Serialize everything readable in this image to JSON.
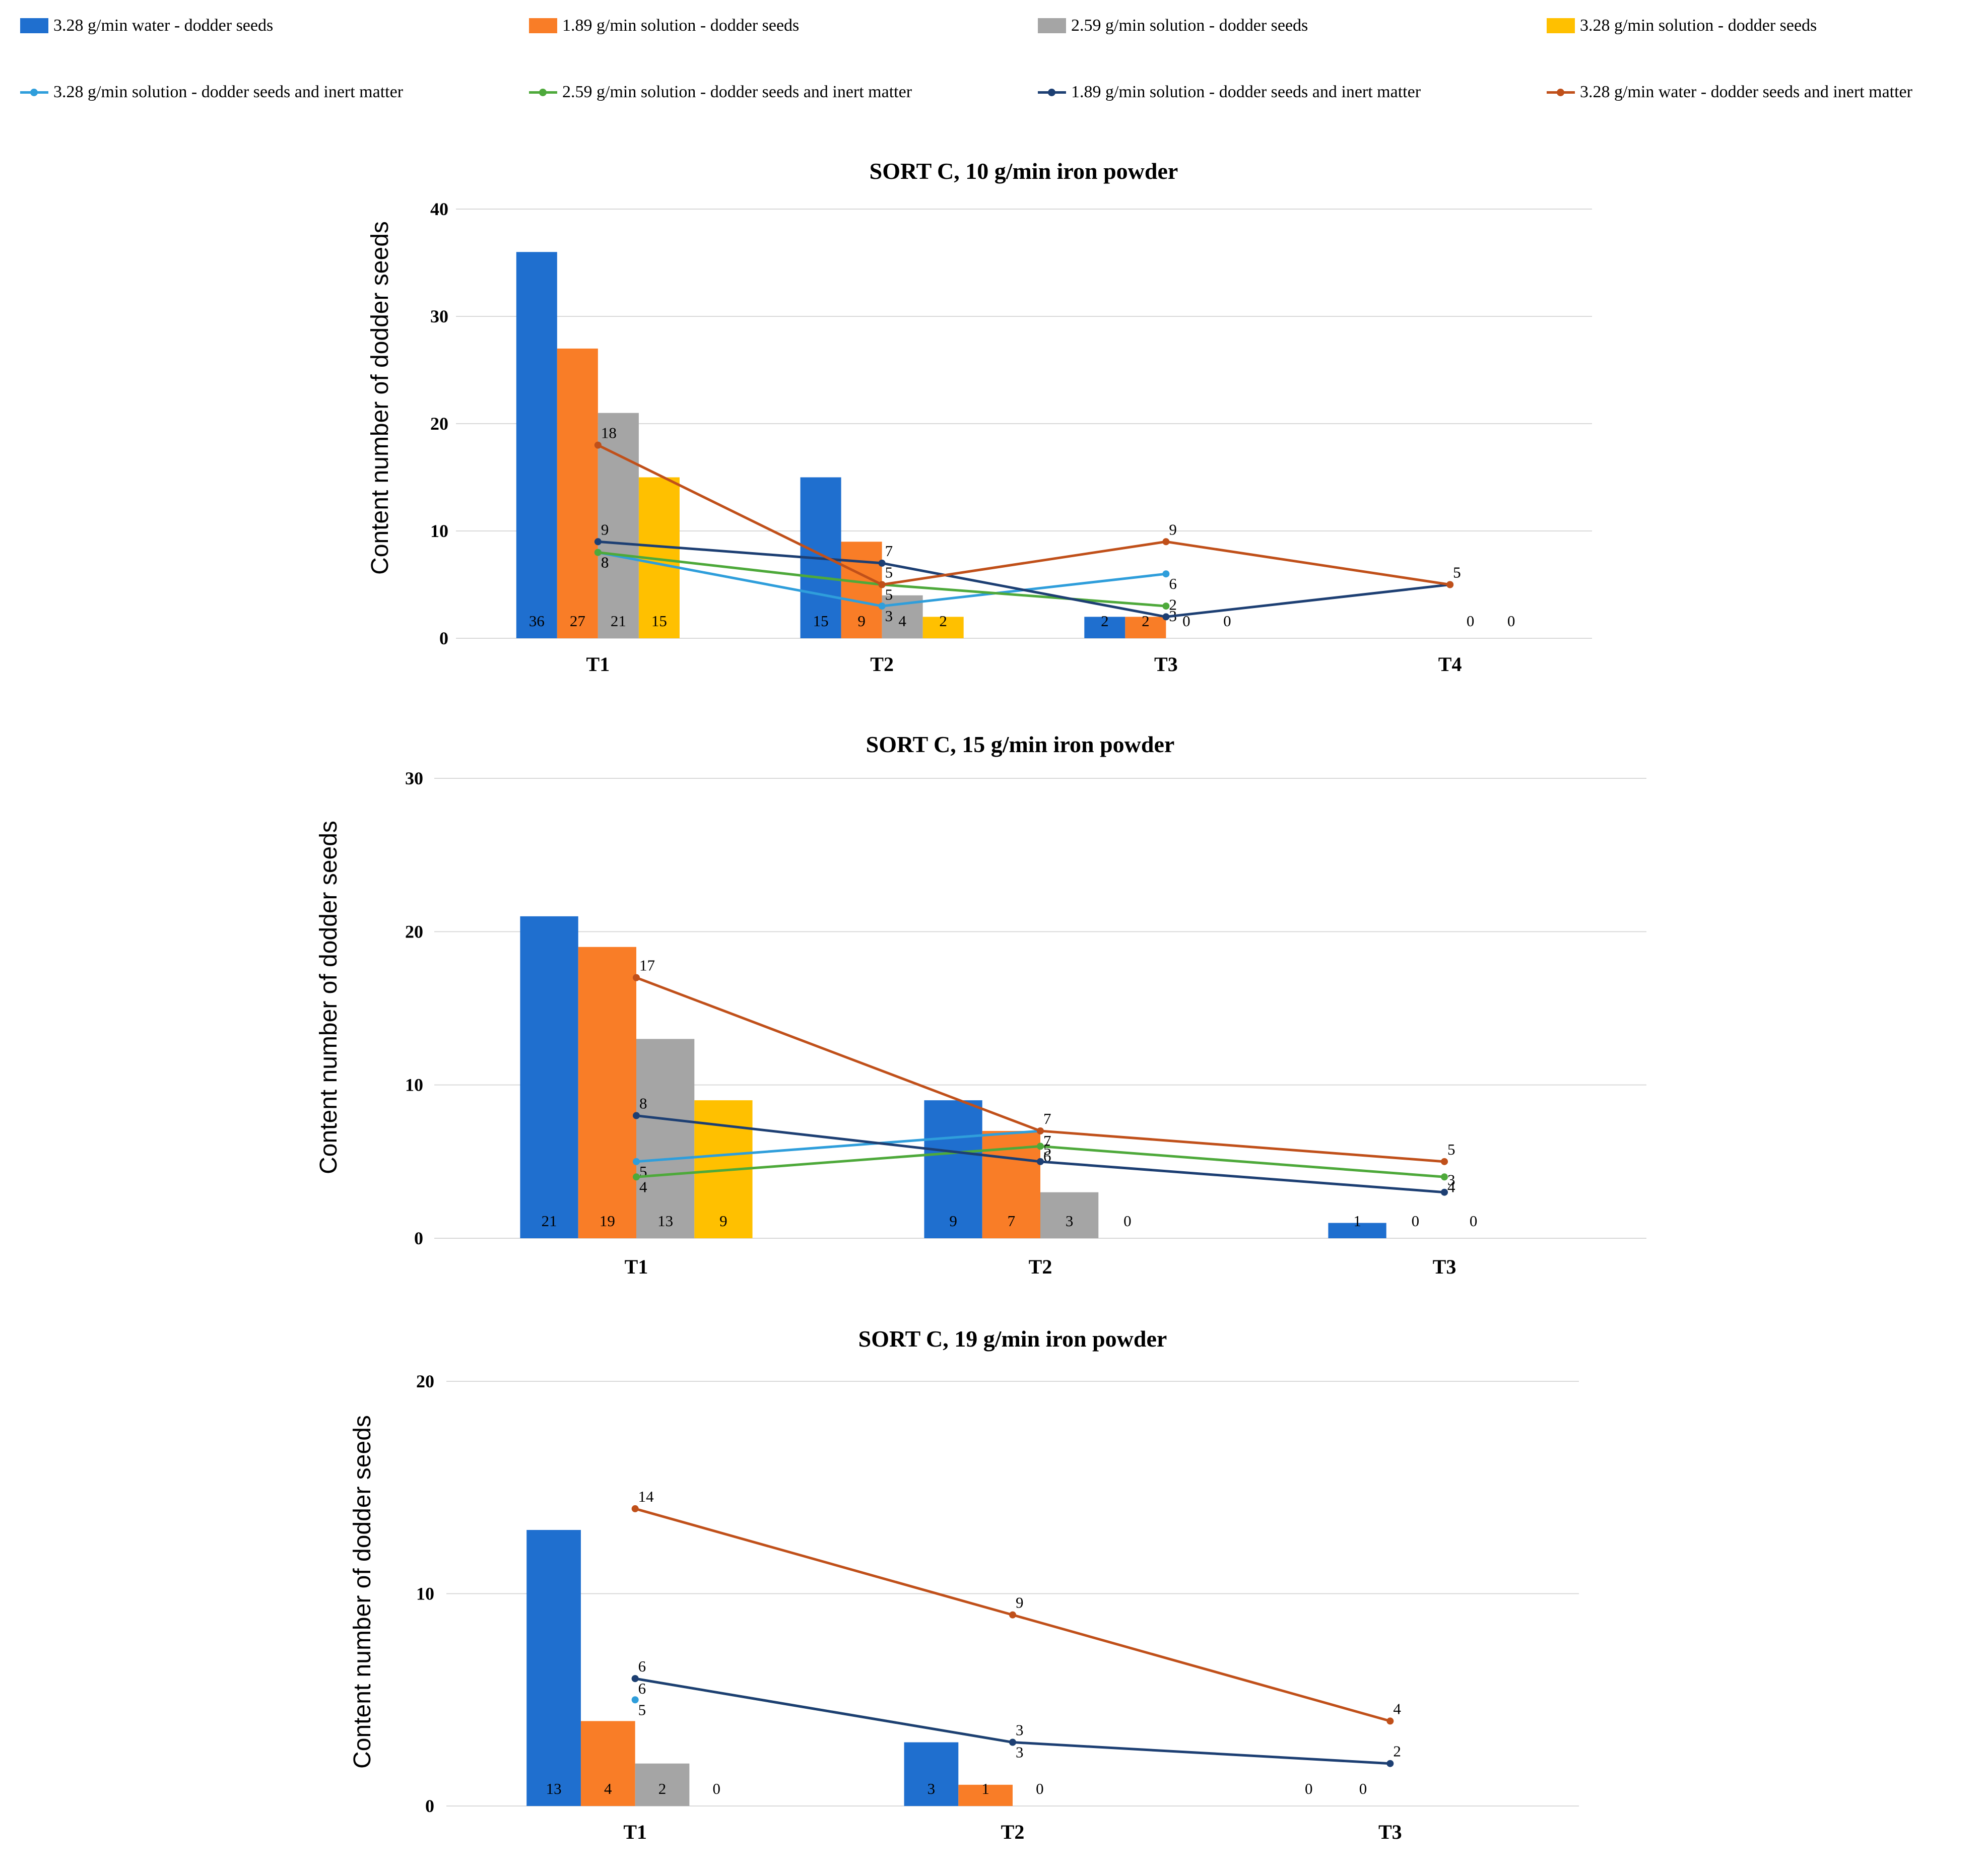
{
  "legend": {
    "bars": [
      {
        "label": "3.28 g/min water - dodder seeds",
        "color": "#1f6fcf"
      },
      {
        "label": "1.89 g/min solution - dodder seeds",
        "color": "#f97d27"
      },
      {
        "label": "2.59 g/min solution - dodder seeds",
        "color": "#a5a5a5"
      },
      {
        "label": "3.28 g/min solution - dodder seeds",
        "color": "#ffc000"
      }
    ],
    "lines": [
      {
        "label": "3.28 g/min solution - dodder seeds and inert matter",
        "color": "#2f9edb"
      },
      {
        "label": "2.59 g/min solution - dodder seeds and inert matter",
        "color": "#4ea93b"
      },
      {
        "label": "1.89 g/min solution - dodder seeds and inert matter",
        "color": "#1d3f73"
      },
      {
        "label": "3.28 g/min water - dodder seeds and inert matter",
        "color": "#c0501a"
      }
    ]
  },
  "chart_data": [
    {
      "type": "bar",
      "title": "SORT C,  10 g/min iron powder",
      "xlabel": "",
      "ylabel": "Content number of dodder seeds",
      "ylim": [
        0,
        40
      ],
      "yticks": [
        0,
        10,
        20,
        30,
        40
      ],
      "categories": [
        "T1",
        "T2",
        "T3",
        "T4"
      ],
      "bar_series": [
        {
          "name": "3.28 g/min water - dodder seeds",
          "values": [
            36,
            15,
            2,
            null
          ],
          "labels": [
            "36",
            "15",
            "2",
            ""
          ]
        },
        {
          "name": "1.89 g/min solution - dodder seeds",
          "values": [
            27,
            9,
            2,
            null
          ],
          "labels": [
            "27",
            "9",
            "2",
            ""
          ]
        },
        {
          "name": "2.59 g/min solution - dodder seeds",
          "values": [
            21,
            4,
            0,
            0
          ],
          "labels": [
            "21",
            "4",
            "0",
            "0"
          ]
        },
        {
          "name": "3.28 g/min solution - dodder seeds",
          "values": [
            15,
            2,
            0,
            0
          ],
          "labels": [
            "15",
            "2",
            "0",
            "0"
          ]
        }
      ],
      "line_series": [
        {
          "name": "3.28 g/min solution - dodder seeds and inert matter",
          "values": [
            8,
            3,
            6,
            null
          ],
          "labels": [
            "8",
            "3",
            "6",
            ""
          ]
        },
        {
          "name": "2.59 g/min solution - dodder seeds and inert matter",
          "values": [
            8,
            5,
            3,
            null
          ],
          "labels": [
            "8",
            "5",
            "3",
            ""
          ]
        },
        {
          "name": "1.89 g/min solution - dodder seeds and inert matter",
          "values": [
            9,
            7,
            2,
            5
          ],
          "labels": [
            "9",
            "7",
            "2",
            "5"
          ]
        },
        {
          "name": "3.28 g/min water - dodder seeds and inert matter",
          "values": [
            18,
            5,
            9,
            5
          ],
          "labels": [
            "18",
            "5",
            "9",
            "5"
          ]
        }
      ]
    },
    {
      "type": "bar",
      "title": "SORT C,  15 g/min iron powder",
      "xlabel": "",
      "ylabel": "Content number of dodder seeds",
      "ylim": [
        0,
        30
      ],
      "yticks": [
        0,
        10,
        20,
        30
      ],
      "categories": [
        "T1",
        "T2",
        "T3"
      ],
      "bar_series": [
        {
          "name": "3.28 g/min water - dodder seeds",
          "values": [
            21,
            9,
            1
          ],
          "labels": [
            "21",
            "9",
            "1"
          ]
        },
        {
          "name": "1.89 g/min solution - dodder seeds",
          "values": [
            19,
            7,
            0
          ],
          "labels": [
            "19",
            "7",
            "0"
          ]
        },
        {
          "name": "2.59 g/min solution - dodder seeds",
          "values": [
            13,
            3,
            0
          ],
          "labels": [
            "13",
            "3",
            "0"
          ]
        },
        {
          "name": "3.28 g/min solution - dodder seeds",
          "values": [
            9,
            0,
            null
          ],
          "labels": [
            "9",
            "0",
            ""
          ]
        }
      ],
      "line_series": [
        {
          "name": "3.28 g/min solution - dodder seeds and inert matter",
          "values": [
            5,
            7,
            null
          ],
          "labels": [
            "5",
            "7",
            ""
          ]
        },
        {
          "name": "2.59 g/min solution - dodder seeds and inert matter",
          "values": [
            4,
            6,
            4
          ],
          "labels": [
            "4",
            "6",
            "4"
          ]
        },
        {
          "name": "1.89 g/min solution - dodder seeds and inert matter",
          "values": [
            8,
            5,
            3
          ],
          "labels": [
            "8",
            "5",
            "3"
          ]
        },
        {
          "name": "3.28 g/min water - dodder seeds and inert matter",
          "values": [
            17,
            7,
            5
          ],
          "labels": [
            "17",
            "7",
            "5"
          ]
        }
      ]
    },
    {
      "type": "bar",
      "title": "SORT C,  19 g/min iron powder",
      "xlabel": "",
      "ylabel": "Content number of dodder seeds",
      "ylim": [
        0,
        20
      ],
      "yticks": [
        0,
        10,
        20
      ],
      "categories": [
        "T1",
        "T2",
        "T3"
      ],
      "bar_series": [
        {
          "name": "3.28 g/min water - dodder seeds",
          "values": [
            13,
            3,
            0
          ],
          "labels": [
            "13",
            "3",
            "0"
          ]
        },
        {
          "name": "1.89 g/min solution - dodder seeds",
          "values": [
            4,
            1,
            0
          ],
          "labels": [
            "4",
            "1",
            "0"
          ]
        },
        {
          "name": "2.59 g/min solution - dodder seeds",
          "values": [
            2,
            0,
            null
          ],
          "labels": [
            "2",
            "0",
            ""
          ]
        },
        {
          "name": "3.28 g/min solution - dodder seeds",
          "values": [
            0,
            null,
            null
          ],
          "labels": [
            "0",
            "",
            ""
          ]
        }
      ],
      "line_series": [
        {
          "name": "3.28 g/min solution - dodder seeds and inert matter",
          "values": [
            5,
            null,
            null
          ],
          "labels": [
            "5",
            "",
            ""
          ]
        },
        {
          "name": "2.59 g/min solution - dodder seeds and inert matter",
          "values": [
            6,
            3,
            null
          ],
          "labels": [
            "6",
            "3",
            ""
          ]
        },
        {
          "name": "1.89 g/min solution - dodder seeds and inert matter",
          "values": [
            6,
            3,
            2
          ],
          "labels": [
            "6",
            "3",
            "2"
          ]
        },
        {
          "name": "3.28 g/min water - dodder seeds and inert matter",
          "values": [
            14,
            9,
            4
          ],
          "labels": [
            "14",
            "9",
            "4"
          ]
        }
      ]
    }
  ]
}
